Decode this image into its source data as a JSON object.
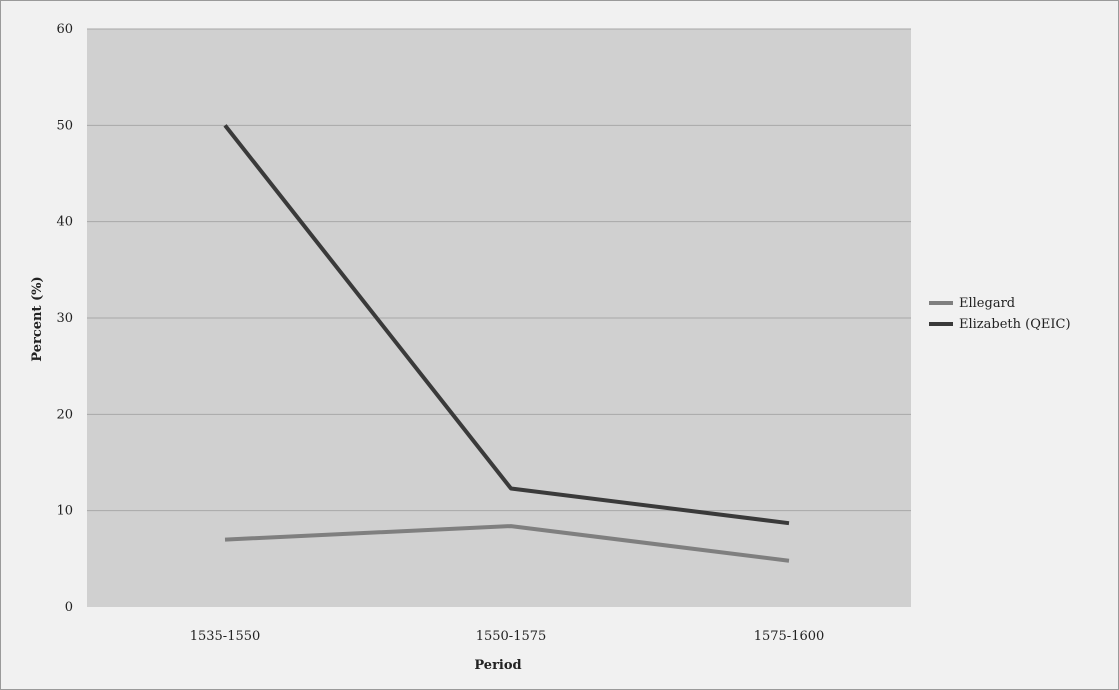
{
  "chart_data": {
    "type": "line",
    "categories": [
      "1535-1550",
      "1550-1575",
      "1575-1600"
    ],
    "series": [
      {
        "name": "Ellegard",
        "values": [
          7,
          8.4,
          4.8
        ],
        "color": "#7f7f7f"
      },
      {
        "name": "Elizabeth (QEIC)",
        "values": [
          50,
          12.3,
          8.7
        ],
        "color": "#3a3a3a"
      }
    ],
    "xlabel": "Period",
    "ylabel": "Percent (%)",
    "ylim": [
      0,
      60
    ],
    "yticks": [
      "0",
      "10",
      "20",
      "30",
      "40",
      "50",
      "60"
    ],
    "grid": true,
    "legend_position": "right"
  },
  "colors": {
    "plot_area": "#d0d0d0",
    "gridline": "#a8a8a8",
    "background": "#f1f1f1"
  }
}
